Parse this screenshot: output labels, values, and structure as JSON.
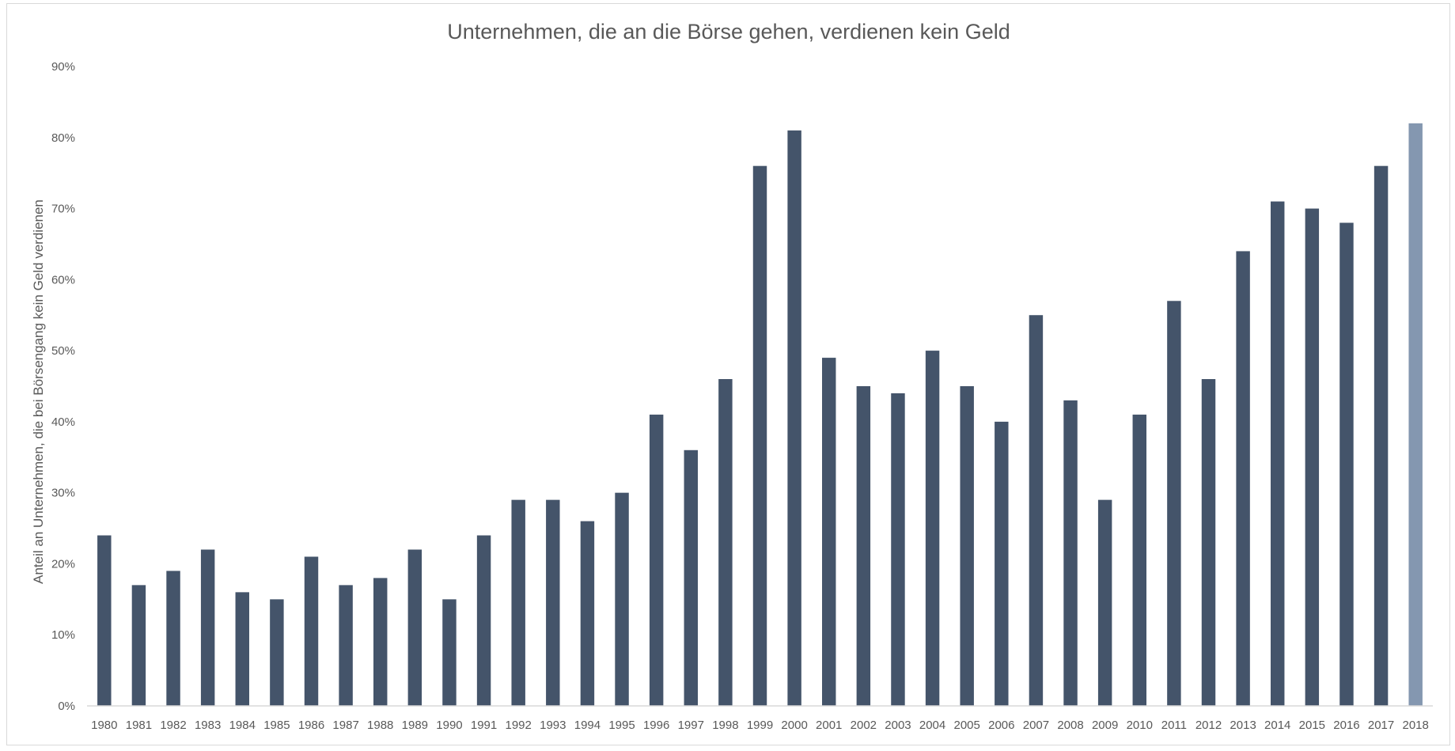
{
  "chart_data": {
    "type": "bar",
    "title": "Unternehmen, die an die Börse gehen, verdienen kein Geld",
    "xlabel": "",
    "ylabel": "Anteil an Unternehmen, die bei Börsengang kein Geld verdienen",
    "ylim": [
      0,
      90
    ],
    "ytick_step": 10,
    "ytick_labels": [
      "0%",
      "10%",
      "20%",
      "30%",
      "40%",
      "50%",
      "60%",
      "70%",
      "80%",
      "90%"
    ],
    "grid": false,
    "legend": "none",
    "categories": [
      "1980",
      "1981",
      "1982",
      "1983",
      "1984",
      "1985",
      "1986",
      "1987",
      "1988",
      "1989",
      "1990",
      "1991",
      "1992",
      "1993",
      "1994",
      "1995",
      "1996",
      "1997",
      "1998",
      "1999",
      "2000",
      "2001",
      "2002",
      "2003",
      "2004",
      "2005",
      "2006",
      "2007",
      "2008",
      "2009",
      "2010",
      "2011",
      "2012",
      "2013",
      "2014",
      "2015",
      "2016",
      "2017",
      "2018"
    ],
    "values": [
      24,
      17,
      19,
      22,
      16,
      15,
      21,
      17,
      18,
      22,
      15,
      24,
      29,
      29,
      26,
      30,
      41,
      36,
      46,
      76,
      81,
      49,
      45,
      44,
      50,
      45,
      40,
      55,
      43,
      29,
      41,
      57,
      46,
      64,
      71,
      70,
      68,
      76,
      82
    ],
    "colors": {
      "bar": "#44546a",
      "highlight_bar": "#8497b0",
      "axis": "#d9d9d9"
    },
    "highlight_categories": [
      "2018"
    ]
  }
}
